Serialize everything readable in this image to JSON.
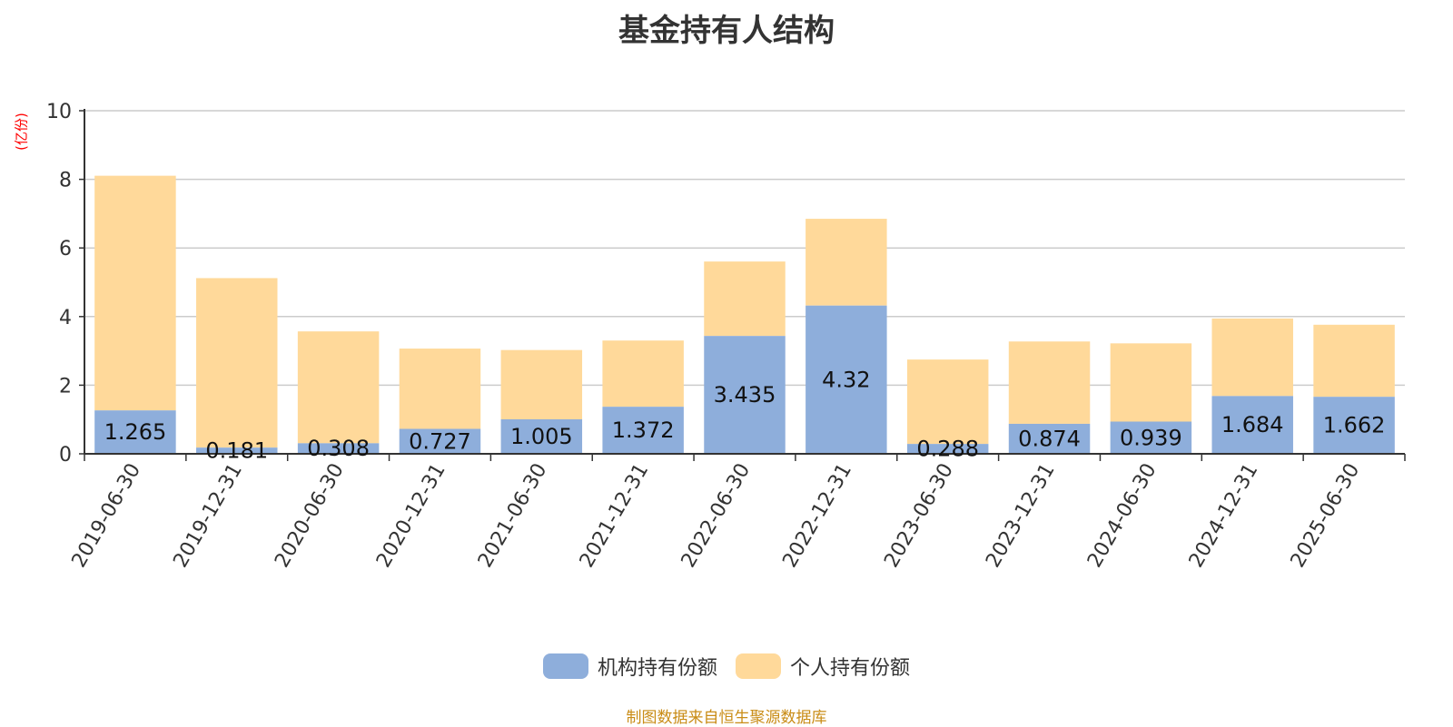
{
  "chart_data": {
    "type": "bar",
    "stacked": true,
    "title": "基金持有人结构",
    "unit_label": "(亿份)",
    "categories": [
      "2019-06-30",
      "2019-12-31",
      "2020-06-30",
      "2020-12-31",
      "2021-06-30",
      "2021-12-31",
      "2022-06-30",
      "2022-12-31",
      "2023-06-30",
      "2023-12-31",
      "2024-06-30",
      "2024-12-31",
      "2025-06-30"
    ],
    "series": [
      {
        "name": "机构持有份额",
        "color": "#8eaedb",
        "values": [
          1.265,
          0.181,
          0.308,
          0.727,
          1.005,
          1.372,
          3.435,
          4.32,
          0.288,
          0.874,
          0.939,
          1.684,
          1.662
        ],
        "labels": [
          "1.265",
          "0.181",
          "0.308",
          "0.727",
          "1.005",
          "1.372",
          "3.435",
          "4.32",
          "0.288",
          "0.874",
          "0.939",
          "1.684",
          "1.662"
        ]
      },
      {
        "name": "个人持有份额",
        "color": "#ffd99a",
        "values": [
          6.84,
          4.94,
          3.26,
          2.34,
          2.02,
          1.93,
          2.17,
          2.53,
          2.46,
          2.4,
          2.28,
          2.26,
          2.1
        ]
      }
    ],
    "ylim": [
      0,
      10
    ],
    "yticks": [
      0,
      2,
      4,
      6,
      8,
      10
    ],
    "grid": true,
    "legend_position": "bottom"
  },
  "source_note": "制图数据来自恒生聚源数据库"
}
